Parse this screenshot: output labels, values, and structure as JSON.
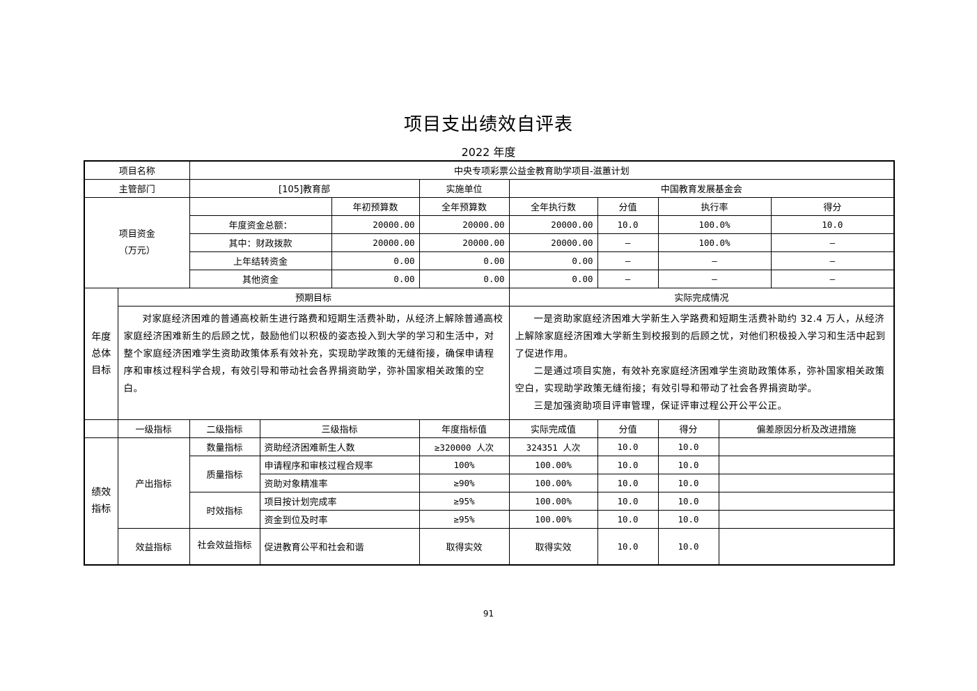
{
  "title": "项目支出绩效自评表",
  "year": "2022 年度",
  "project": {
    "name_label": "项目名称",
    "name": "中央专项彩票公益金教育助学项目-滋蕙计划",
    "dept_label": "主管部门",
    "dept": "[105]教育部",
    "unit_label": "实施单位",
    "unit": "中国教育发展基金会"
  },
  "funds": {
    "label": "项目资金",
    "unit": "（万元）",
    "headers": [
      "",
      "年初预算数",
      "全年预算数",
      "全年执行数",
      "分值",
      "执行率",
      "得分"
    ],
    "rows": [
      [
        "年度资金总额：",
        "20000.00",
        "20000.00",
        "20000.00",
        "10.0",
        "100.0%",
        "10.0"
      ],
      [
        "其中：财政拨款",
        "20000.00",
        "20000.00",
        "20000.00",
        "—",
        "100.0%",
        "—"
      ],
      [
        "上年结转资金",
        "0.00",
        "0.00",
        "0.00",
        "—",
        "—",
        "—"
      ],
      [
        "其他资金",
        "0.00",
        "0.00",
        "0.00",
        "—",
        "—",
        "—"
      ]
    ]
  },
  "goals": {
    "label": "年度总体目标",
    "expected_label": "预期目标",
    "actual_label": "实际完成情况",
    "expected": "对家庭经济困难的普通高校新生进行路费和短期生活费补助，从经济上解除普通高校家庭经济困难新生的后顾之忧，鼓励他们以积极的姿态投入到大学的学习和生活中，对整个家庭经济困难学生资助政策体系有效补充，实现助学政策的无缝衔接，确保申请程序和审核过程科学合规，有效引导和带动社会各界捐资助学，弥补国家相关政策的空白。",
    "actual": [
      "一是资助家庭经济困难大学新生入学路费和短期生活费补助约 32.4 万人，从经济上解除家庭经济困难大学新生到校报到的后顾之忧，对他们积极投入学习和生活中起到了促进作用。",
      "二是通过项目实施，有效补充家庭经济困难学生资助政策体系，弥补国家相关政策空白，实现助学政策无缝衔接；有效引导和带动了社会各界捐资助学。",
      "三是加强资助项目评审管理，保证评审过程公开公平公正。"
    ]
  },
  "indicators": {
    "label": "绩效指标",
    "headers": [
      "一级指标",
      "二级指标",
      "三级指标",
      "年度指标值",
      "实际完成值",
      "分值",
      "得分",
      "偏差原因分析及改进措施"
    ],
    "level1": [
      "产出指标",
      "效益指标"
    ],
    "level2": [
      "数量指标",
      "质量指标",
      "时效指标",
      "社会效益指标"
    ],
    "rows": [
      [
        "资助经济困难新生人数",
        "≥320000 人次",
        "324351 人次",
        "10.0",
        "10.0",
        ""
      ],
      [
        "申请程序和审核过程合规率",
        "100%",
        "100.00%",
        "10.0",
        "10.0",
        ""
      ],
      [
        "资助对象精准率",
        "≥90%",
        "100.00%",
        "10.0",
        "10.0",
        ""
      ],
      [
        "项目按计划完成率",
        "≥95%",
        "100.00%",
        "10.0",
        "10.0",
        ""
      ],
      [
        "资金到位及时率",
        "≥95%",
        "100.00%",
        "10.0",
        "10.0",
        ""
      ],
      [
        "促进教育公平和社会和谐",
        "取得实效",
        "取得实效",
        "10.0",
        "10.0",
        ""
      ]
    ]
  },
  "page_number": "91"
}
